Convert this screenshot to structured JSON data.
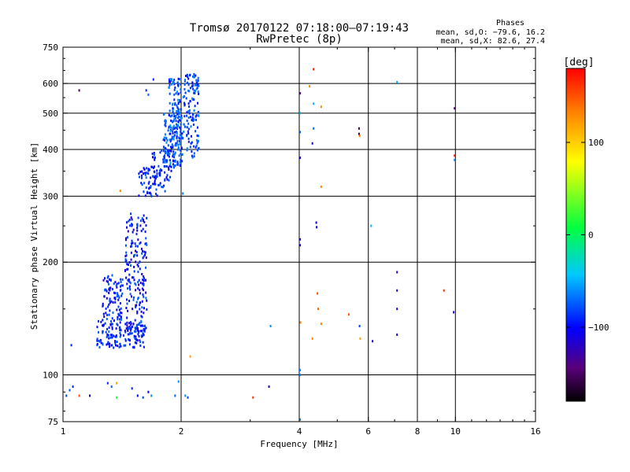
{
  "chart_data": {
    "type": "scatter",
    "title": "Tromsø 20170122 07:18:00–07:19:43",
    "subtitle": "RwPretec (8p)",
    "xlabel": "Frequency [MHz]",
    "ylabel": "Stationary phase Virtual Height [km]",
    "x_scale": "log",
    "y_scale": "log",
    "xlim": [
      1,
      16
    ],
    "ylim": [
      75,
      750
    ],
    "grid": true,
    "x_ticks": [
      {
        "value": 1,
        "label": "1"
      },
      {
        "value": 2,
        "label": "2"
      },
      {
        "value": 4,
        "label": "4"
      },
      {
        "value": 6,
        "label": "6"
      },
      {
        "value": 8,
        "label": "8"
      },
      {
        "value": 10,
        "label": "10"
      },
      {
        "value": 16,
        "label": "16"
      }
    ],
    "y_ticks": [
      {
        "value": 75,
        "label": "75"
      },
      {
        "value": 100,
        "label": "100"
      },
      {
        "value": 200,
        "label": "200"
      },
      {
        "value": 300,
        "label": "300"
      },
      {
        "value": 400,
        "label": "400"
      },
      {
        "value": 500,
        "label": "500"
      },
      {
        "value": 600,
        "label": "600"
      },
      {
        "value": 750,
        "label": "750"
      }
    ],
    "stats": {
      "heading": "Phases",
      "line_o": "mean, sd,O: −79.6, 16.2",
      "line_x": "mean, sd,X:  82.6, 27.4"
    },
    "colorbar": {
      "label": "[deg]",
      "range": [
        -180,
        180
      ],
      "ticks": [
        {
          "value": 100,
          "label": "100"
        },
        {
          "value": 0,
          "label": "0"
        },
        {
          "value": -100,
          "label": "−100"
        }
      ]
    },
    "series": [
      {
        "clusters": [
          {
            "x": [
              1.22,
              1.62
            ],
            "y": [
              118,
              140
            ],
            "phase": [
              -110,
              -70
            ],
            "count": 160
          },
          {
            "x": [
              1.26,
              1.42
            ],
            "y": [
              140,
              185
            ],
            "phase": [
              -115,
              -70
            ],
            "count": 90
          },
          {
            "x": [
              1.44,
              1.64
            ],
            "y": [
              130,
              270
            ],
            "phase": [
              -120,
              -70
            ],
            "count": 190
          },
          {
            "x": [
              1.56,
              1.82
            ],
            "y": [
              300,
              360
            ],
            "phase": [
              -110,
              -70
            ],
            "count": 70
          },
          {
            "x": [
              1.68,
              1.92
            ],
            "y": [
              330,
              400
            ],
            "phase": [
              -110,
              -70
            ],
            "count": 40
          },
          {
            "x": [
              1.8,
              2.02
            ],
            "y": [
              360,
              500
            ],
            "phase": [
              -100,
              -55
            ],
            "count": 180
          },
          {
            "x": [
              1.86,
              2.0
            ],
            "y": [
              500,
              620
            ],
            "phase": [
              -100,
              -55
            ],
            "count": 60
          },
          {
            "x": [
              2.02,
              2.22
            ],
            "y": [
              380,
              640
            ],
            "phase": [
              -100,
              -60
            ],
            "count": 130
          }
        ],
        "points": [
          {
            "x": 1.02,
            "y": 88,
            "phase": -80
          },
          {
            "x": 1.04,
            "y": 91,
            "phase": -75
          },
          {
            "x": 1.06,
            "y": 93,
            "phase": -90
          },
          {
            "x": 1.1,
            "y": 88,
            "phase": 150
          },
          {
            "x": 1.17,
            "y": 88,
            "phase": -120
          },
          {
            "x": 1.3,
            "y": 95,
            "phase": -90
          },
          {
            "x": 1.33,
            "y": 93,
            "phase": -70
          },
          {
            "x": 1.37,
            "y": 95,
            "phase": 120
          },
          {
            "x": 1.37,
            "y": 87,
            "phase": 20
          },
          {
            "x": 1.5,
            "y": 92,
            "phase": -90
          },
          {
            "x": 1.55,
            "y": 88,
            "phase": -100
          },
          {
            "x": 1.6,
            "y": 87,
            "phase": -80
          },
          {
            "x": 1.65,
            "y": 90,
            "phase": -100
          },
          {
            "x": 1.68,
            "y": 88,
            "phase": -60
          },
          {
            "x": 1.93,
            "y": 88,
            "phase": -70
          },
          {
            "x": 1.97,
            "y": 96,
            "phase": -60
          },
          {
            "x": 2.05,
            "y": 88,
            "phase": -60
          },
          {
            "x": 2.08,
            "y": 87,
            "phase": -80
          },
          {
            "x": 3.05,
            "y": 87,
            "phase": 160
          },
          {
            "x": 3.35,
            "y": 93,
            "phase": -120
          },
          {
            "x": 4.02,
            "y": 76,
            "phase": -60
          },
          {
            "x": 4.02,
            "y": 100,
            "phase": -60
          },
          {
            "x": 4.02,
            "y": 103,
            "phase": -60
          },
          {
            "x": 2.11,
            "y": 112,
            "phase": 120
          },
          {
            "x": 3.38,
            "y": 135,
            "phase": -60
          },
          {
            "x": 4.03,
            "y": 138,
            "phase": 130
          },
          {
            "x": 4.32,
            "y": 125,
            "phase": 130
          },
          {
            "x": 4.45,
            "y": 165,
            "phase": 150
          },
          {
            "x": 4.47,
            "y": 150,
            "phase": 140
          },
          {
            "x": 4.55,
            "y": 137,
            "phase": 130
          },
          {
            "x": 5.35,
            "y": 145,
            "phase": 150
          },
          {
            "x": 5.7,
            "y": 135,
            "phase": -80
          },
          {
            "x": 5.72,
            "y": 125,
            "phase": 120
          },
          {
            "x": 6.15,
            "y": 123,
            "phase": -120
          },
          {
            "x": 7.1,
            "y": 128,
            "phase": -120
          },
          {
            "x": 7.1,
            "y": 150,
            "phase": -120
          },
          {
            "x": 7.1,
            "y": 168,
            "phase": -120
          },
          {
            "x": 7.1,
            "y": 188,
            "phase": -120
          },
          {
            "x": 9.35,
            "y": 168,
            "phase": 160
          },
          {
            "x": 9.9,
            "y": 147,
            "phase": -110
          },
          {
            "x": 4.02,
            "y": 230,
            "phase": -120
          },
          {
            "x": 4.02,
            "y": 222,
            "phase": -120
          },
          {
            "x": 4.42,
            "y": 255,
            "phase": -100
          },
          {
            "x": 4.43,
            "y": 248,
            "phase": -100
          },
          {
            "x": 6.1,
            "y": 250,
            "phase": -50
          },
          {
            "x": 4.55,
            "y": 318,
            "phase": 130
          },
          {
            "x": 2.02,
            "y": 305,
            "phase": -60
          },
          {
            "x": 1.4,
            "y": 310,
            "phase": 130
          },
          {
            "x": 4.02,
            "y": 380,
            "phase": -120
          },
          {
            "x": 4.32,
            "y": 415,
            "phase": -120
          },
          {
            "x": 4.02,
            "y": 445,
            "phase": -70
          },
          {
            "x": 4.35,
            "y": 455,
            "phase": -70
          },
          {
            "x": 5.68,
            "y": 440,
            "phase": -160
          },
          {
            "x": 5.68,
            "y": 455,
            "phase": -160
          },
          {
            "x": 5.7,
            "y": 435,
            "phase": 140
          },
          {
            "x": 9.95,
            "y": 385,
            "phase": 170
          },
          {
            "x": 9.95,
            "y": 375,
            "phase": -60
          },
          {
            "x": 4.02,
            "y": 500,
            "phase": -50
          },
          {
            "x": 4.55,
            "y": 520,
            "phase": 130
          },
          {
            "x": 4.35,
            "y": 530,
            "phase": -50
          },
          {
            "x": 9.95,
            "y": 515,
            "phase": -150
          },
          {
            "x": 4.02,
            "y": 565,
            "phase": -140
          },
          {
            "x": 4.25,
            "y": 590,
            "phase": 130
          },
          {
            "x": 1.1,
            "y": 575,
            "phase": -150
          },
          {
            "x": 1.63,
            "y": 575,
            "phase": -90
          },
          {
            "x": 1.65,
            "y": 560,
            "phase": -70
          },
          {
            "x": 1.7,
            "y": 615,
            "phase": -90
          },
          {
            "x": 4.35,
            "y": 655,
            "phase": 170
          },
          {
            "x": 7.1,
            "y": 605,
            "phase": -50
          },
          {
            "x": 1.05,
            "y": 120,
            "phase": -90
          }
        ]
      }
    ]
  }
}
